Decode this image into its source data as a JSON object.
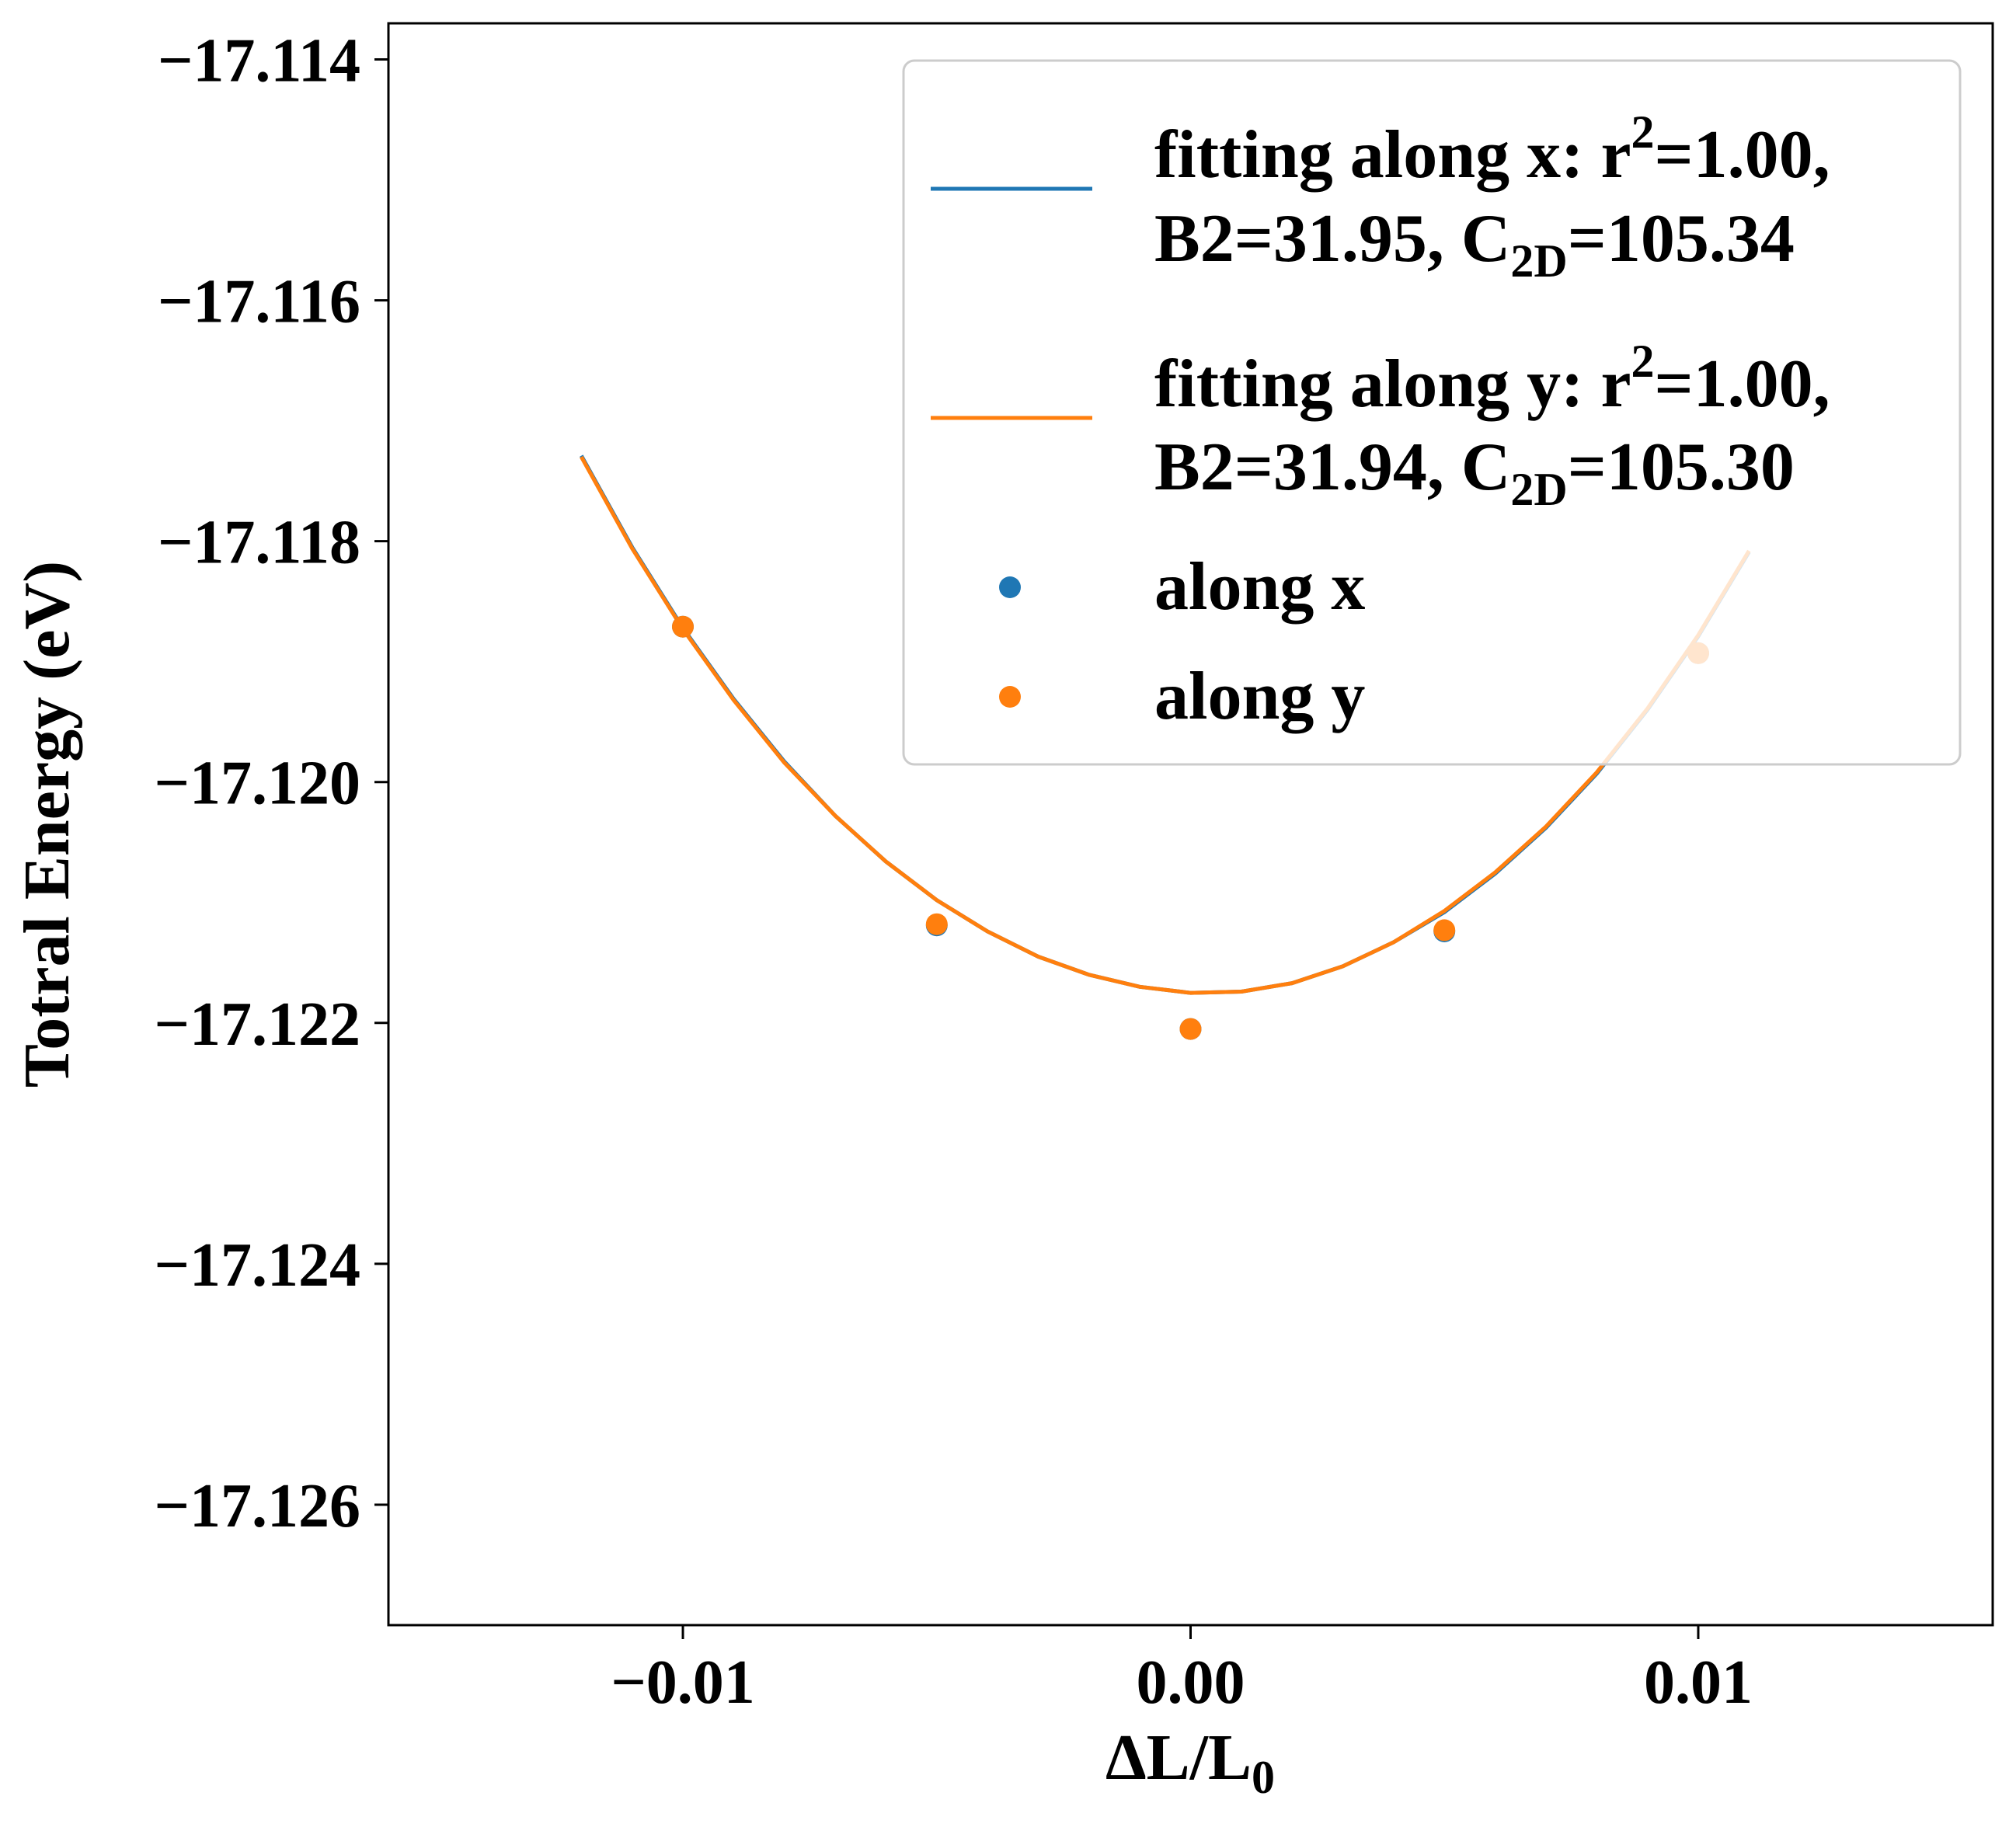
{
  "chart_data": {
    "type": "line",
    "title": "",
    "xlabel": "ΔL/L",
    "xlabel_sub": "0",
    "ylabel": "Totral Energy (eV)",
    "xlim": [
      -0.0158,
      0.0158
    ],
    "ylim": [
      -17.127,
      -17.1137
    ],
    "x_ticks": [
      -0.01,
      0.0,
      0.01
    ],
    "x_tick_labels": [
      "−0.01",
      "0.00",
      "0.01"
    ],
    "y_ticks": [
      -17.114,
      -17.116,
      -17.118,
      -17.12,
      -17.122,
      -17.124,
      -17.126
    ],
    "y_tick_labels": [
      "−17.114",
      "−17.116",
      "−17.118",
      "−17.120",
      "−17.122",
      "−17.124",
      "−17.126"
    ],
    "grid": false,
    "legend_position": "top-right",
    "colors": {
      "x": "#1f77b4",
      "y": "#ff7f0e"
    },
    "fit_lines": [
      {
        "name": "fitting along x: r²=1.00, B2=31.95, C2D=105.34",
        "legend": {
          "l1_pre": "fitting along x: r",
          "l1_sup": "2",
          "l1_post": "=1.00,",
          "l2_pre": "B2=31.95, C",
          "l2_sub": "2D",
          "l2_post": "=105.34"
        },
        "x": [
          -0.012,
          -0.011,
          -0.01,
          -0.009,
          -0.008,
          -0.007,
          -0.006,
          -0.005,
          -0.004,
          -0.003,
          -0.002,
          -0.001,
          0.0,
          0.001,
          0.002,
          0.003,
          0.004,
          0.005,
          0.006,
          0.007,
          0.008,
          0.009,
          0.01,
          0.011
        ],
        "y": [
          -17.11729,
          -17.11805,
          -17.11872,
          -17.11931,
          -17.11983,
          -17.12028,
          -17.12066,
          -17.12098,
          -17.12124,
          -17.12145,
          -17.1216,
          -17.1217,
          -17.12175,
          -17.12174,
          -17.12167,
          -17.12153,
          -17.12133,
          -17.12108,
          -17.12076,
          -17.12038,
          -17.11993,
          -17.1194,
          -17.11879,
          -17.11809
        ]
      },
      {
        "name": "fitting along y: r²=1.00, B2=31.94, C2D=105.30",
        "legend": {
          "l1_pre": "fitting along y: r",
          "l1_sup": "2",
          "l1_post": "=1.00,",
          "l2_pre": "B2=31.94, C",
          "l2_sub": "2D",
          "l2_post": "=105.30"
        },
        "x": [
          -0.012,
          -0.011,
          -0.01,
          -0.009,
          -0.008,
          -0.007,
          -0.006,
          -0.005,
          -0.004,
          -0.003,
          -0.002,
          -0.001,
          0.0,
          0.001,
          0.002,
          0.003,
          0.004,
          0.005,
          0.006,
          0.007,
          0.008,
          0.009,
          0.01,
          0.011
        ],
        "y": [
          -17.1173,
          -17.11806,
          -17.11873,
          -17.11932,
          -17.11984,
          -17.12028,
          -17.12066,
          -17.12098,
          -17.12124,
          -17.12145,
          -17.1216,
          -17.1217,
          -17.12175,
          -17.12174,
          -17.12167,
          -17.12153,
          -17.12133,
          -17.12107,
          -17.12075,
          -17.12037,
          -17.11992,
          -17.11939,
          -17.11878,
          -17.11808
        ]
      }
    ],
    "points": [
      {
        "name": "along x",
        "x": [
          -0.01,
          -0.005,
          0.0,
          0.005,
          0.01
        ],
        "y": [
          -17.11871,
          -17.12119,
          -17.12205,
          -17.12124,
          -17.11893
        ]
      },
      {
        "name": "along y",
        "x": [
          -0.01,
          -0.005,
          0.0,
          0.005,
          0.01
        ],
        "y": [
          -17.11871,
          -17.12118,
          -17.12205,
          -17.12123,
          -17.11893
        ]
      }
    ]
  }
}
